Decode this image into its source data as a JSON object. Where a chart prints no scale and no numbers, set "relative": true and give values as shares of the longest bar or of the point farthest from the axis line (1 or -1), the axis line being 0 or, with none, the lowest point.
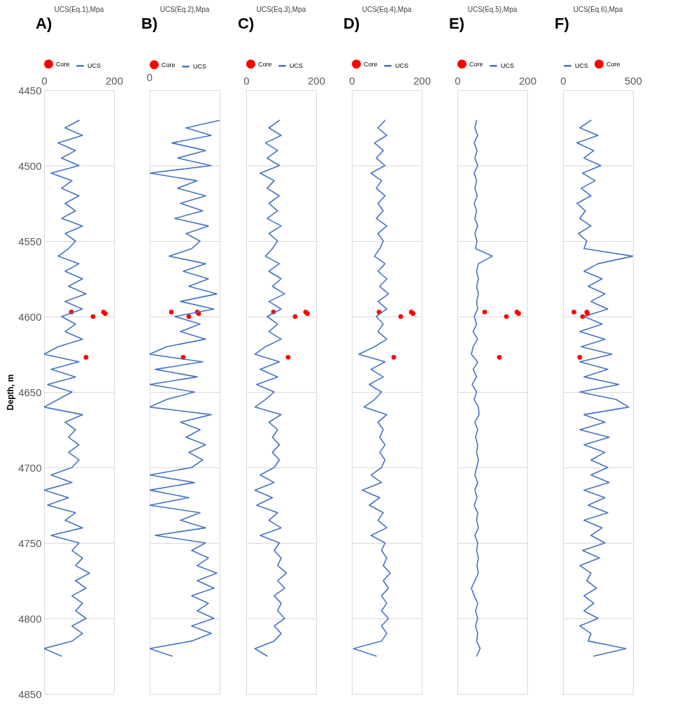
{
  "chart_data": [
    {
      "type": "line",
      "title": "UCS(Eq.1),Mpa",
      "ylabel": "Depth, m",
      "annotations": [
        "A)"
      ],
      "orientation": "horizontal",
      "xlim": [
        0,
        200
      ],
      "xticks": [
        0,
        200
      ],
      "ylim": [
        4850,
        4450
      ],
      "yticks": [
        4450,
        4500,
        4550,
        4600,
        4650,
        4700,
        4750,
        4800,
        4850
      ],
      "grid": "y",
      "legend": "top",
      "x": [
        4470,
        4475,
        4480,
        4485,
        4490,
        4495,
        4500,
        4505,
        4510,
        4515,
        4520,
        4525,
        4530,
        4535,
        4540,
        4545,
        4550,
        4555,
        4560,
        4565,
        4570,
        4575,
        4580,
        4585,
        4590,
        4595,
        4600,
        4605,
        4610,
        4615,
        4620,
        4625,
        4630,
        4635,
        4640,
        4645,
        4650,
        4655,
        4660,
        4665,
        4670,
        4675,
        4680,
        4685,
        4690,
        4695,
        4700,
        4705,
        4710,
        4715,
        4720,
        4725,
        4730,
        4735,
        4740,
        4745,
        4750,
        4755,
        4760,
        4765,
        4770,
        4775,
        4780,
        4785,
        4790,
        4795,
        4800,
        4805,
        4810,
        4815,
        4820,
        4825
      ],
      "series": [
        {
          "name": "Core",
          "type": "scatter",
          "color": "#ff0000",
          "x": [
            4597,
            4600,
            4597,
            4598,
            4627
          ],
          "values": [
            78,
            140,
            170,
            175,
            120
          ]
        },
        {
          "name": "UCS",
          "color": "#4472c4",
          "values": [
            100,
            60,
            110,
            40,
            90,
            50,
            100,
            20,
            80,
            50,
            100,
            60,
            90,
            50,
            110,
            60,
            90,
            70,
            40,
            100,
            60,
            110,
            70,
            120,
            60,
            110,
            50,
            90,
            60,
            110,
            40,
            0,
            100,
            20,
            90,
            10,
            80,
            40,
            0,
            110,
            60,
            90,
            70,
            100,
            70,
            100,
            80,
            20,
            80,
            0,
            70,
            10,
            90,
            60,
            110,
            20,
            100,
            80,
            110,
            90,
            130,
            90,
            120,
            80,
            110,
            90,
            120,
            80,
            110,
            80,
            0,
            50
          ]
        }
      ]
    },
    {
      "type": "line",
      "title": "UCS(Eq.2),Mpa",
      "annotations": [
        "B)",
        "0"
      ],
      "orientation": "horizontal",
      "relative": true,
      "ylim": [
        4850,
        4450
      ],
      "yticks": [
        4450,
        4500,
        4550,
        4600,
        4650,
        4700,
        4750,
        4800,
        4850
      ],
      "tick_labels": "x",
      "grid": "y",
      "legend": "top",
      "x": [
        4470,
        4475,
        4480,
        4485,
        4490,
        4495,
        4500,
        4505,
        4510,
        4515,
        4520,
        4525,
        4530,
        4535,
        4540,
        4545,
        4550,
        4555,
        4560,
        4565,
        4570,
        4575,
        4580,
        4585,
        4590,
        4595,
        4600,
        4605,
        4610,
        4615,
        4620,
        4625,
        4630,
        4635,
        4640,
        4645,
        4650,
        4655,
        4660,
        4665,
        4670,
        4675,
        4680,
        4685,
        4690,
        4695,
        4700,
        4705,
        4710,
        4715,
        4720,
        4725,
        4730,
        4735,
        4740,
        4745,
        4750,
        4755,
        4760,
        4765,
        4770,
        4775,
        4780,
        4785,
        4790,
        4795,
        4800,
        4805,
        4810,
        4815,
        4820,
        4825
      ],
      "series": [
        {
          "name": "Core",
          "type": "scatter",
          "color": "#ff0000",
          "x": [
            4597,
            4600,
            4597,
            4598,
            4627
          ],
          "values": [
            0.31,
            0.56,
            0.68,
            0.7,
            0.48
          ]
        },
        {
          "name": "UCS",
          "color": "#4472c4",
          "values": [
            1,
            0.52,
            0.88,
            0.32,
            0.8,
            0.4,
            0.88,
            0,
            0.68,
            0.4,
            0.8,
            0.44,
            0.76,
            0.36,
            0.84,
            0.52,
            0.72,
            0.6,
            0.28,
            0.8,
            0.48,
            0.84,
            0.56,
            0.96,
            0.44,
            0.92,
            0.36,
            0.72,
            0.44,
            0.8,
            0.24,
            0,
            0.76,
            0.08,
            0.68,
            0,
            0.64,
            0.24,
            0,
            0.88,
            0.44,
            0.72,
            0.52,
            0.8,
            0.56,
            0.76,
            0.6,
            0,
            0.64,
            0,
            0.56,
            0,
            0.72,
            0.44,
            0.8,
            0.08,
            0.8,
            0.6,
            0.84,
            0.68,
            0.96,
            0.68,
            0.92,
            0.6,
            0.84,
            0.68,
            0.92,
            0.6,
            0.88,
            0.6,
            0,
            0.32
          ]
        }
      ]
    },
    {
      "type": "line",
      "title": "UCS(Eq.3),Mpa",
      "annotations": [
        "C)"
      ],
      "orientation": "horizontal",
      "xlim": [
        0,
        200
      ],
      "xticks": [
        0,
        200
      ],
      "ylim": [
        4850,
        4450
      ],
      "yticks": [
        4450,
        4500,
        4550,
        4600,
        4650,
        4700,
        4750,
        4800,
        4850
      ],
      "tick_labels": "x",
      "grid": "y",
      "legend": "top",
      "x": [
        4470,
        4475,
        4480,
        4485,
        4490,
        4495,
        4500,
        4505,
        4510,
        4515,
        4520,
        4525,
        4530,
        4535,
        4540,
        4545,
        4550,
        4555,
        4560,
        4565,
        4570,
        4575,
        4580,
        4585,
        4590,
        4595,
        4600,
        4605,
        4610,
        4615,
        4620,
        4625,
        4630,
        4635,
        4640,
        4645,
        4650,
        4655,
        4660,
        4665,
        4670,
        4675,
        4680,
        4685,
        4690,
        4695,
        4700,
        4705,
        4710,
        4715,
        4720,
        4725,
        4730,
        4735,
        4740,
        4745,
        4750,
        4755,
        4760,
        4765,
        4770,
        4775,
        4780,
        4785,
        4790,
        4795,
        4800,
        4805,
        4810,
        4815,
        4820,
        4825
      ],
      "series": [
        {
          "name": "Core",
          "type": "scatter",
          "color": "#ff0000",
          "x": [
            4597,
            4600,
            4597,
            4598,
            4627
          ],
          "values": [
            78,
            140,
            170,
            175,
            120
          ]
        },
        {
          "name": "UCS",
          "color": "#4472c4",
          "values": [
            95,
            65,
            100,
            55,
            90,
            60,
            95,
            40,
            80,
            60,
            95,
            65,
            90,
            60,
            100,
            65,
            90,
            75,
            55,
            95,
            65,
            100,
            75,
            110,
            65,
            100,
            60,
            90,
            65,
            100,
            55,
            25,
            95,
            40,
            90,
            30,
            80,
            55,
            25,
            100,
            65,
            90,
            75,
            95,
            75,
            95,
            80,
            40,
            80,
            25,
            75,
            30,
            90,
            65,
            100,
            40,
            95,
            80,
            100,
            90,
            115,
            90,
            110,
            80,
            100,
            90,
            110,
            80,
            100,
            80,
            25,
            60
          ]
        }
      ]
    },
    {
      "type": "line",
      "title": "UCS(Eq.4),Mpa",
      "annotations": [
        "D)"
      ],
      "orientation": "horizontal",
      "xlim": [
        0,
        200
      ],
      "xticks": [
        0,
        200
      ],
      "ylim": [
        4850,
        4450
      ],
      "yticks": [
        4450,
        4500,
        4550,
        4600,
        4650,
        4700,
        4750,
        4800,
        4850
      ],
      "tick_labels": "x",
      "grid": "y",
      "legend": "top",
      "x": [
        4470,
        4475,
        4480,
        4485,
        4490,
        4495,
        4500,
        4505,
        4510,
        4515,
        4520,
        4525,
        4530,
        4535,
        4540,
        4545,
        4550,
        4555,
        4560,
        4565,
        4570,
        4575,
        4580,
        4585,
        4590,
        4595,
        4600,
        4605,
        4610,
        4615,
        4620,
        4625,
        4630,
        4635,
        4640,
        4645,
        4650,
        4655,
        4660,
        4665,
        4670,
        4675,
        4680,
        4685,
        4690,
        4695,
        4700,
        4705,
        4710,
        4715,
        4720,
        4725,
        4730,
        4735,
        4740,
        4745,
        4750,
        4755,
        4760,
        4765,
        4770,
        4775,
        4780,
        4785,
        4790,
        4795,
        4800,
        4805,
        4810,
        4815,
        4820,
        4825
      ],
      "series": [
        {
          "name": "Core",
          "type": "scatter",
          "color": "#ff0000",
          "x": [
            4597,
            4600,
            4597,
            4598,
            4627
          ],
          "values": [
            78,
            140,
            170,
            175,
            120
          ]
        },
        {
          "name": "UCS",
          "color": "#4472c4",
          "values": [
            95,
            75,
            100,
            65,
            90,
            70,
            95,
            55,
            85,
            70,
            95,
            75,
            90,
            70,
            100,
            75,
            90,
            80,
            65,
            95,
            75,
            100,
            80,
            105,
            75,
            100,
            70,
            90,
            75,
            100,
            65,
            20,
            95,
            55,
            90,
            50,
            85,
            65,
            35,
            100,
            75,
            90,
            80,
            95,
            80,
            95,
            85,
            55,
            85,
            30,
            80,
            50,
            90,
            75,
            100,
            55,
            95,
            85,
            100,
            90,
            110,
            90,
            105,
            85,
            100,
            85,
            105,
            85,
            100,
            85,
            5,
            70
          ]
        }
      ]
    },
    {
      "type": "line",
      "title": "UCS(Eq.5),Mpa",
      "annotations": [
        "E)"
      ],
      "orientation": "horizontal",
      "xlim": [
        0,
        200
      ],
      "xticks": [
        0,
        200
      ],
      "ylim": [
        4850,
        4450
      ],
      "yticks": [
        4450,
        4500,
        4550,
        4600,
        4650,
        4700,
        4750,
        4800,
        4850
      ],
      "tick_labels": "x",
      "grid": "y",
      "legend": "top",
      "x": [
        4470,
        4475,
        4480,
        4485,
        4490,
        4495,
        4500,
        4505,
        4510,
        4515,
        4520,
        4525,
        4530,
        4535,
        4540,
        4545,
        4550,
        4555,
        4560,
        4565,
        4570,
        4575,
        4580,
        4585,
        4590,
        4595,
        4600,
        4605,
        4610,
        4615,
        4620,
        4625,
        4630,
        4635,
        4640,
        4645,
        4650,
        4655,
        4660,
        4665,
        4670,
        4675,
        4680,
        4685,
        4690,
        4695,
        4700,
        4705,
        4710,
        4715,
        4720,
        4725,
        4730,
        4735,
        4740,
        4745,
        4750,
        4755,
        4760,
        4765,
        4770,
        4775,
        4780,
        4785,
        4790,
        4795,
        4800,
        4805,
        4810,
        4815,
        4820,
        4825
      ],
      "series": [
        {
          "name": "Core",
          "type": "scatter",
          "color": "#ff0000",
          "x": [
            4597,
            4600,
            4597,
            4598,
            4627
          ],
          "values": [
            78,
            140,
            170,
            175,
            120
          ]
        },
        {
          "name": "UCS",
          "color": "#4472c4",
          "values": [
            55,
            50,
            58,
            48,
            56,
            50,
            58,
            48,
            55,
            50,
            57,
            48,
            55,
            50,
            58,
            50,
            56,
            52,
            100,
            60,
            55,
            60,
            55,
            60,
            55,
            58,
            48,
            55,
            45,
            58,
            45,
            40,
            58,
            45,
            55,
            42,
            55,
            48,
            60,
            62,
            50,
            58,
            52,
            58,
            55,
            60,
            55,
            50,
            58,
            50,
            56,
            48,
            58,
            55,
            60,
            50,
            58,
            55,
            60,
            56,
            60,
            50,
            40,
            48,
            58,
            52,
            58,
            52,
            58,
            55,
            65,
            55
          ]
        }
      ]
    },
    {
      "type": "line",
      "title": "UCS(Eq.6),Mpa",
      "annotations": [
        "F)"
      ],
      "orientation": "horizontal",
      "xlim": [
        0,
        500
      ],
      "xticks": [
        0,
        500
      ],
      "ylim": [
        4850,
        4450
      ],
      "yticks": [
        4450,
        4500,
        4550,
        4600,
        4650,
        4700,
        4750,
        4800,
        4850
      ],
      "tick_labels": "x",
      "grid": "y",
      "legend": "top",
      "x": [
        4470,
        4475,
        4480,
        4485,
        4490,
        4495,
        4500,
        4505,
        4510,
        4515,
        4520,
        4525,
        4530,
        4535,
        4540,
        4545,
        4550,
        4555,
        4560,
        4565,
        4570,
        4575,
        4580,
        4585,
        4590,
        4595,
        4600,
        4605,
        4610,
        4615,
        4620,
        4625,
        4630,
        4635,
        4640,
        4645,
        4650,
        4655,
        4660,
        4665,
        4670,
        4675,
        4680,
        4685,
        4690,
        4695,
        4700,
        4705,
        4710,
        4715,
        4720,
        4725,
        4730,
        4735,
        4740,
        4745,
        4750,
        4755,
        4760,
        4765,
        4770,
        4775,
        4780,
        4785,
        4790,
        4795,
        4800,
        4805,
        4810,
        4815,
        4820,
        4825
      ],
      "series": [
        {
          "name": "UCS",
          "color": "#4472c4",
          "values": [
            200,
            120,
            250,
            100,
            220,
            150,
            270,
            140,
            230,
            130,
            200,
            100,
            160,
            120,
            200,
            110,
            170,
            150,
            500,
            250,
            150,
            280,
            180,
            300,
            200,
            320,
            150,
            280,
            120,
            300,
            130,
            350,
            120,
            320,
            150,
            400,
            120,
            380,
            470,
            150,
            300,
            120,
            330,
            150,
            300,
            200,
            320,
            200,
            330,
            150,
            300,
            180,
            320,
            150,
            280,
            200,
            300,
            140,
            260,
            120,
            200,
            170,
            240,
            150,
            220,
            150,
            250,
            120,
            200,
            180,
            450,
            220
          ]
        },
        {
          "name": "Core",
          "type": "scatter",
          "color": "#ff0000",
          "x": [
            4597,
            4600,
            4597,
            4598,
            4627
          ],
          "values": [
            78,
            140,
            170,
            175,
            120
          ]
        }
      ]
    }
  ]
}
